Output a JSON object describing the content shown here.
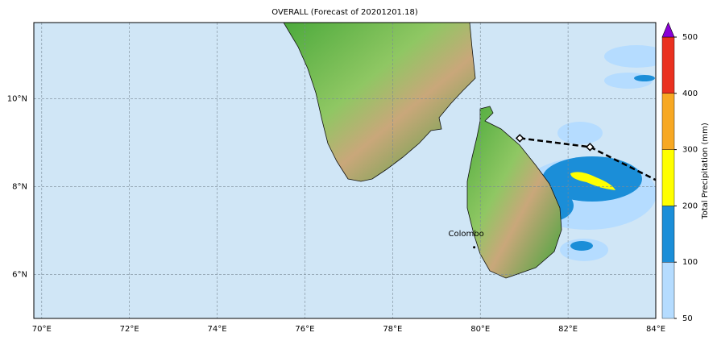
{
  "chart_data": {
    "type": "map",
    "title": "OVERALL (Forecast of 20201201.18)",
    "xlim": [
      69.82,
      84
    ],
    "ylim": [
      5,
      11.73
    ],
    "xticks": [
      {
        "value": 70,
        "label": "70°E"
      },
      {
        "value": 72,
        "label": "72°E"
      },
      {
        "value": 74,
        "label": "74°E"
      },
      {
        "value": 76,
        "label": "76°E"
      },
      {
        "value": 78,
        "label": "78°E"
      },
      {
        "value": 80,
        "label": "80°E"
      },
      {
        "value": 82,
        "label": "82°E"
      },
      {
        "value": 84,
        "label": "84°E"
      }
    ],
    "yticks": [
      {
        "value": 6,
        "label": "6°N"
      },
      {
        "value": 8,
        "label": "8°N"
      },
      {
        "value": 10,
        "label": "10°N"
      }
    ],
    "grid": true,
    "colorbar": {
      "label": "Total Precipitation (mm)",
      "levels": [
        50,
        100,
        200,
        300,
        400,
        500
      ],
      "colors": [
        "#b5dcff",
        "#1b8ed8",
        "#ffff00",
        "#f7a823",
        "#ea3120"
      ],
      "extend_color": "#8a00d6"
    },
    "track": {
      "x": [
        80.9,
        82.5,
        84
      ],
      "y": [
        9.1,
        8.9,
        8.15
      ]
    },
    "city": {
      "name": "Colombo",
      "x": 79.86,
      "y": 6.93
    }
  }
}
